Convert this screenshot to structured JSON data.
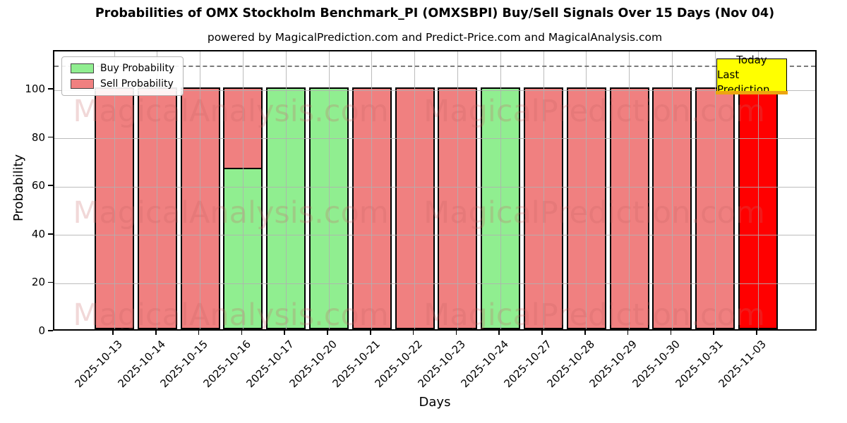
{
  "figure": {
    "title": "Probabilities of OMX Stockholm Benchmark_PI (OMXSBPI) Buy/Sell Signals Over 15 Days (Nov 04)",
    "subtitle": "powered by MagicalPrediction.com and Predict-Price.com and MagicalAnalysis.com"
  },
  "legend": {
    "items": [
      {
        "label": "Buy Probability",
        "color": "#90ee90"
      },
      {
        "label": "Sell Probability",
        "color": "#f08080"
      }
    ]
  },
  "annotation_box": {
    "line1": "Today",
    "line2": "Last Prediction",
    "bg_color": "#ffff00"
  },
  "watermarks": {
    "left_text": "MagicalAnalysis.com",
    "right_text": "MagicalPrediction.com",
    "row_count": 3,
    "color": "#c86464"
  },
  "colors": {
    "buy": "#90ee90",
    "sell": "#f08080",
    "today": "#ff0000",
    "bar_edge": "#000000",
    "grid": "#b0b0b0",
    "dashed_line": "#7a7a7a",
    "annotation_bg": "#ffff00"
  },
  "chart_data": {
    "type": "bar",
    "stacked": true,
    "title": "Probabilities of OMX Stockholm Benchmark_PI (OMXSBPI) Buy/Sell Signals Over 15 Days (Nov 04)",
    "xlabel": "Days",
    "ylabel": "Probability",
    "categories": [
      "2025-10-13",
      "2025-10-14",
      "2025-10-15",
      "2025-10-16",
      "2025-10-17",
      "2025-10-20",
      "2025-10-21",
      "2025-10-22",
      "2025-10-23",
      "2025-10-24",
      "2025-10-27",
      "2025-10-28",
      "2025-10-29",
      "2025-10-30",
      "2025-10-31",
      "2025-11-03"
    ],
    "series": [
      {
        "name": "Buy Probability",
        "color": "#90ee90",
        "values": [
          0,
          0,
          0,
          66.7,
          100,
          100,
          0,
          0,
          0,
          100,
          0,
          0,
          0,
          0,
          0,
          0
        ]
      },
      {
        "name": "Sell Probability",
        "color": "#f08080",
        "values": [
          100,
          100,
          100,
          33.3,
          0,
          0,
          100,
          100,
          100,
          0,
          100,
          100,
          100,
          100,
          100,
          100
        ]
      }
    ],
    "today_index": 15,
    "today_color": "#ff0000",
    "ylim": [
      0,
      116
    ],
    "yticks": [
      0,
      20,
      40,
      60,
      80,
      100
    ],
    "dashed_line_y": 110,
    "grid": true,
    "legend_position": "upper left"
  }
}
